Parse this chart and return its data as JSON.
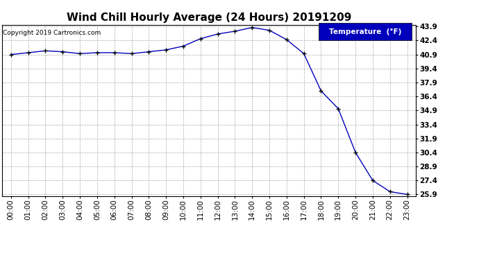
{
  "title": "Wind Chill Hourly Average (24 Hours) 20191209",
  "copyright_text": "Copyright 2019 Cartronics.com",
  "legend_label": "Temperature  (°F)",
  "x_labels": [
    "00:00",
    "01:00",
    "02:00",
    "03:00",
    "04:00",
    "05:00",
    "06:00",
    "07:00",
    "08:00",
    "09:00",
    "10:00",
    "11:00",
    "12:00",
    "13:00",
    "14:00",
    "15:00",
    "16:00",
    "17:00",
    "18:00",
    "19:00",
    "20:00",
    "21:00",
    "22:00",
    "23:00"
  ],
  "y_values": [
    40.9,
    41.1,
    41.3,
    41.2,
    41.0,
    41.1,
    41.1,
    41.0,
    41.2,
    41.4,
    41.8,
    42.6,
    43.1,
    43.4,
    43.8,
    43.5,
    42.5,
    41.0,
    37.0,
    35.1,
    30.4,
    27.4,
    26.2,
    25.9
  ],
  "ylim_min": 25.9,
  "ylim_max": 43.9,
  "yticks": [
    25.9,
    27.4,
    28.9,
    30.4,
    31.9,
    33.4,
    34.9,
    36.4,
    37.9,
    39.4,
    40.9,
    42.4,
    43.9
  ],
  "line_color": "#0000bb",
  "marker_color": "#000000",
  "bg_color": "#ffffff",
  "plot_bg_color": "#ffffff",
  "grid_color": "#aaaaaa",
  "title_fontsize": 11,
  "tick_fontsize": 7.5,
  "copyright_fontsize": 6.5,
  "legend_bg_color": "#0000bb",
  "legend_text_color": "#ffffff",
  "legend_fontsize": 7.5
}
